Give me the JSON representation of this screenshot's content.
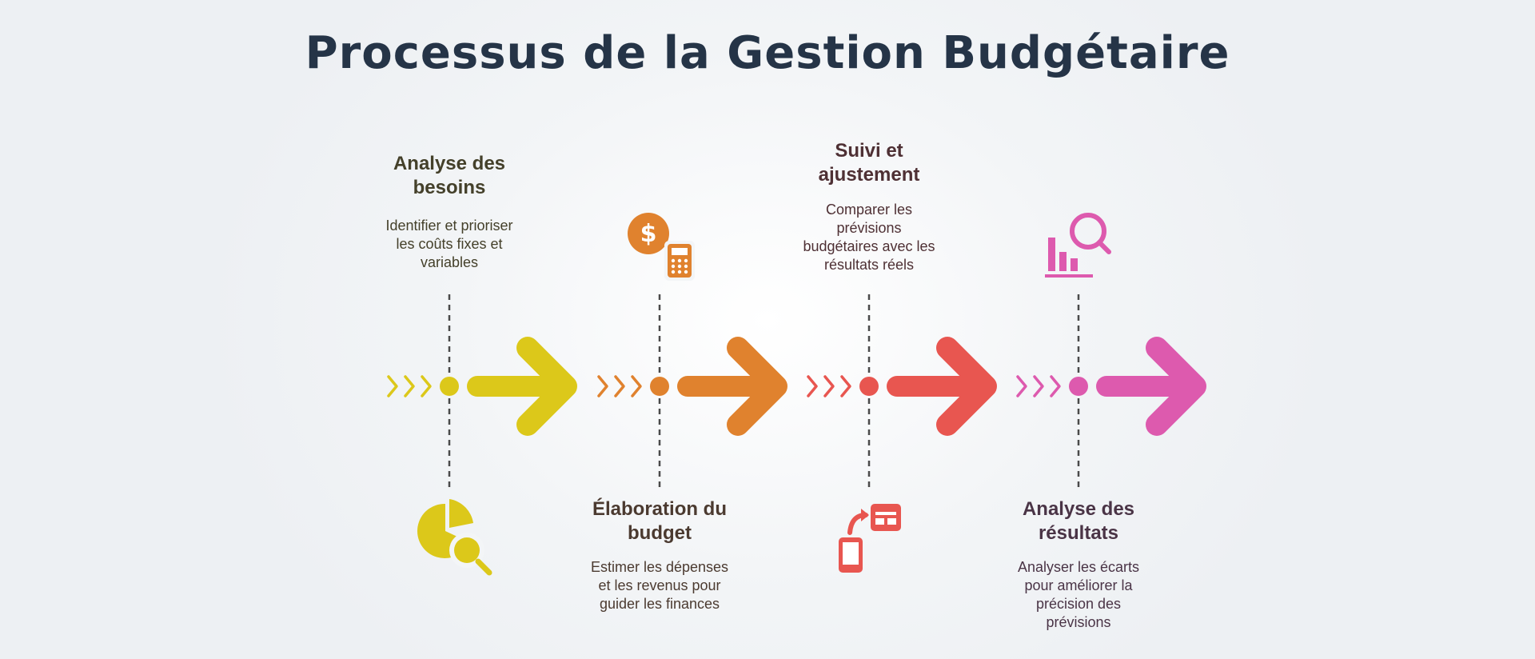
{
  "title": "Processus de la Gestion Budgétaire",
  "stages": [
    {
      "heading": "Analyse des besoins",
      "description": "Identifier et prioriser les coûts fixes et variables",
      "icon": "pie-chart-search-icon",
      "color": "#dcc81a",
      "text_color": "#44402a",
      "label_position": "top"
    },
    {
      "heading": "Élaboration du budget",
      "description": "Estimer les dépenses et les revenus pour guider les finances",
      "icon": "dollar-calculator-icon",
      "color": "#e0822e",
      "text_color": "#4b3a30",
      "label_position": "bottom"
    },
    {
      "heading": "Suivi et ajustement",
      "description": "Comparer les prévisions budgétaires avec les résultats réels",
      "icon": "phone-table-sync-icon",
      "color": "#e85650",
      "text_color": "#4e3034",
      "label_position": "top"
    },
    {
      "heading": "Analyse des résultats",
      "description": "Analyser les écarts pour améliorer la précision des prévisions",
      "icon": "bar-chart-magnifier-icon",
      "color": "#dd5aae",
      "text_color": "#4a3446",
      "label_position": "bottom"
    }
  ]
}
